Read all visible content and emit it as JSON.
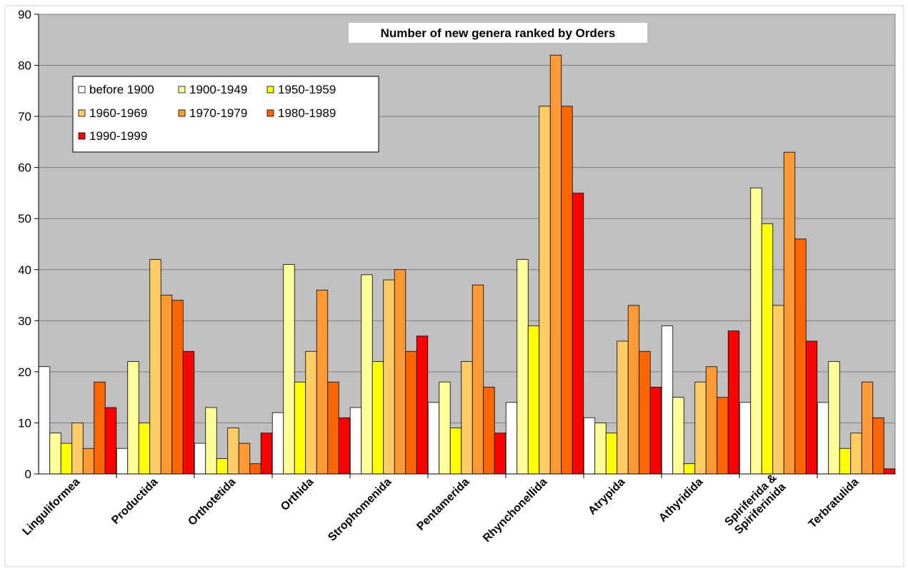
{
  "chart_data": {
    "type": "bar",
    "title": "Number of new genera ranked by Orders",
    "xlabel": "",
    "ylabel": "",
    "ylim": [
      0,
      90
    ],
    "yticks": [
      0,
      10,
      20,
      30,
      40,
      50,
      60,
      70,
      80,
      90
    ],
    "grid": true,
    "legend_position": "top-left",
    "categories": [
      "Linguliformea",
      "Productida",
      "Orthotetida",
      "Orthida",
      "Strophomenida",
      "Pentamerida",
      "Rhynchonellida",
      "Atrypida",
      "Athyridida",
      "Spiriferida & Spiriferinida",
      "Terbratulida"
    ],
    "category_lines": [
      [
        "Linguliformea"
      ],
      [
        "Productida"
      ],
      [
        "Orthotetida"
      ],
      [
        "Orthida"
      ],
      [
        "Strophomenida"
      ],
      [
        "Pentamerida"
      ],
      [
        "Rhynchonellida"
      ],
      [
        "Atrypida"
      ],
      [
        "Athyridida"
      ],
      [
        "Spiriferida &",
        "Spiriferinida"
      ],
      [
        "Terbratulida"
      ]
    ],
    "series": [
      {
        "name": "before 1900",
        "color": "#ffffff",
        "values": [
          21,
          5,
          6,
          12,
          13,
          14,
          14,
          11,
          29,
          14,
          14
        ]
      },
      {
        "name": "1900-1949",
        "color": "#ffff99",
        "values": [
          8,
          22,
          13,
          41,
          39,
          18,
          42,
          10,
          15,
          56,
          22
        ]
      },
      {
        "name": "1950-1959",
        "color": "#ffff00",
        "values": [
          6,
          10,
          3,
          18,
          22,
          9,
          29,
          8,
          2,
          49,
          5
        ]
      },
      {
        "name": "1960-1969",
        "color": "#ffcc66",
        "values": [
          10,
          42,
          9,
          24,
          38,
          22,
          72,
          26,
          18,
          33,
          8
        ]
      },
      {
        "name": "1970-1979",
        "color": "#ff9933",
        "values": [
          5,
          35,
          6,
          36,
          40,
          37,
          82,
          33,
          21,
          63,
          18
        ]
      },
      {
        "name": "1980-1989",
        "color": "#ff6600",
        "values": [
          18,
          34,
          2,
          18,
          24,
          17,
          72,
          24,
          15,
          46,
          11
        ]
      },
      {
        "name": "1990-1999",
        "color": "#ff0000",
        "values": [
          13,
          24,
          8,
          11,
          27,
          8,
          55,
          17,
          28,
          26,
          1
        ]
      }
    ],
    "colors": {
      "plot_background": "#c0c0c0",
      "gridline": "#808080",
      "bar_stroke": "#000000"
    }
  }
}
